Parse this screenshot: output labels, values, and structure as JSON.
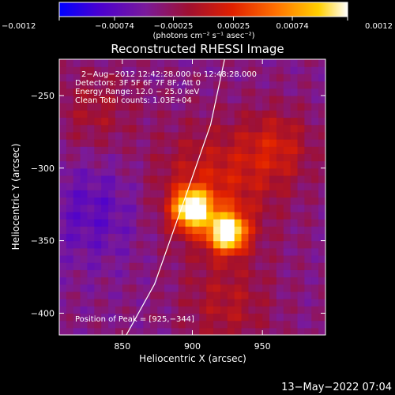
{
  "chart_data": {
    "type": "heatmap",
    "title": "Reconstructed RHESSI Image",
    "xlabel": "Heliocentric X (arcsec)",
    "ylabel": "Heliocentric Y (arcsec)",
    "xlim": [
      805,
      995
    ],
    "ylim": [
      -415,
      -225
    ],
    "x_ticks": [
      850,
      900,
      950
    ],
    "y_ticks": [
      -250,
      -300,
      -350,
      -400
    ],
    "x_tick_labels": [
      "850",
      "900",
      "950"
    ],
    "y_tick_labels": [
      "−250",
      "−300",
      "−350",
      "−400"
    ],
    "colorbar": {
      "range": [
        -0.0012,
        0.0012
      ],
      "ticks": [
        -0.0012,
        -0.00074,
        -0.00025,
        0.00025,
        0.00074,
        0.0012
      ],
      "tick_labels": [
        "−0.0012",
        "−0.00074",
        "−0.00025",
        "0.00025",
        "0.00074",
        "0.0012"
      ],
      "units": "(photons cm⁻² s⁻¹ asec⁻²)",
      "colormap": [
        "#0000ff",
        "#4b00d0",
        "#7a1a9a",
        "#a01030",
        "#e02000",
        "#ff7000",
        "#ffd000",
        "#ffffff"
      ]
    },
    "sources": [
      {
        "x": 900,
        "y": -328,
        "peak": 0.0012
      },
      {
        "x": 925,
        "y": -344,
        "peak": 0.0012
      }
    ],
    "limb_arc": [
      [
        850,
        -420
      ],
      [
        873,
        -380
      ],
      [
        895,
        -320
      ],
      [
        913,
        -270
      ],
      [
        923,
        -225
      ]
    ],
    "info_lines": [
      "2−Aug−2012 12:42:28.000 to 12:48:28.000",
      "Detectors: 3F 5F 6F 7F 8F, Att 0",
      "Energy Range: 12.0 − 25.0 keV",
      "Clean     Total counts: 1.03E+04"
    ],
    "peak_label": "Position of Peak = [925,−344]",
    "timestamp": "13−May−2022 07:04"
  }
}
